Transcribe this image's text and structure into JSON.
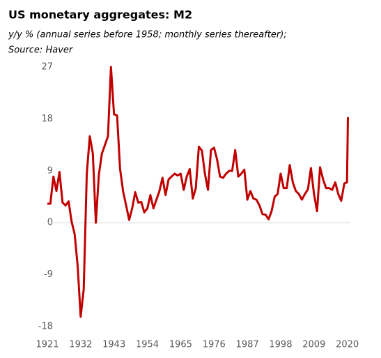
{
  "chart_data": {
    "type": "line",
    "title": "US monetary aggregates: M2",
    "subtitle": "y/y % (annual series before 1958; monthly series thereafter);",
    "source": "Source: Haver",
    "x": [
      1921,
      1922,
      1923,
      1924,
      1925,
      1926,
      1927,
      1928,
      1929,
      1930,
      1931,
      1932,
      1933,
      1934,
      1935,
      1936,
      1937,
      1938,
      1939,
      1940,
      1941,
      1942,
      1943,
      1944,
      1945,
      1946,
      1947,
      1948,
      1949,
      1950,
      1951,
      1952,
      1953,
      1954,
      1955,
      1956,
      1957,
      1958,
      1959,
      1960,
      1961,
      1962,
      1963,
      1964,
      1965,
      1966,
      1967,
      1968,
      1969,
      1970,
      1971,
      1972,
      1973,
      1974,
      1975,
      1976,
      1977,
      1978,
      1979,
      1980,
      1981,
      1982,
      1983,
      1984,
      1985,
      1986,
      1987,
      1988,
      1989,
      1990,
      1991,
      1992,
      1993,
      1994,
      1995,
      1996,
      1997,
      1998,
      1999,
      2000,
      2001,
      2002,
      2003,
      2004,
      2005,
      2006,
      2007,
      2008,
      2009,
      2010,
      2011,
      2012,
      2013,
      2014,
      2015,
      2016,
      2017,
      2018,
      2019,
      2019.9,
      2020.2
    ],
    "series": [
      {
        "name": "M2",
        "color": "#c00000",
        "values": [
          3.3,
          3.3,
          8.0,
          5.5,
          8.8,
          3.5,
          3.0,
          3.7,
          0.2,
          -2.0,
          -7.5,
          -16.3,
          -11.5,
          8.5,
          15.0,
          12.0,
          0.0,
          8.3,
          12.0,
          13.5,
          15.0,
          27.0,
          18.8,
          18.6,
          9.3,
          5.4,
          3.0,
          0.5,
          2.5,
          5.3,
          3.5,
          3.6,
          1.8,
          2.5,
          4.8,
          2.5,
          4.0,
          5.5,
          7.8,
          4.8,
          7.5,
          8.0,
          8.5,
          8.2,
          8.5,
          5.7,
          8.0,
          9.3,
          4.2,
          6.0,
          13.2,
          12.5,
          8.5,
          5.7,
          12.6,
          13.0,
          11.0,
          8.0,
          7.8,
          8.5,
          9.0,
          9.0,
          12.6,
          8.0,
          8.5,
          9.2,
          4.0,
          5.5,
          4.2,
          4.0,
          3.0,
          1.5,
          1.4,
          0.6,
          2.0,
          4.5,
          5.0,
          8.5,
          6.0,
          6.0,
          10.0,
          7.0,
          5.5,
          5.0,
          4.0,
          5.0,
          5.8,
          9.5,
          5.0,
          2.0,
          9.6,
          7.5,
          6.0,
          6.0,
          5.7,
          7.0,
          5.0,
          3.8,
          6.8,
          7.0,
          18.3
        ]
      }
    ],
    "xlim": [
      1921,
      2021
    ],
    "xticks": [
      1921,
      1932,
      1943,
      1954,
      1965,
      1976,
      1987,
      1998,
      2009,
      2020
    ],
    "ylim": [
      -18,
      27
    ],
    "yticks": [
      27,
      18,
      9,
      0,
      -9,
      -18
    ],
    "zero_line": true
  }
}
